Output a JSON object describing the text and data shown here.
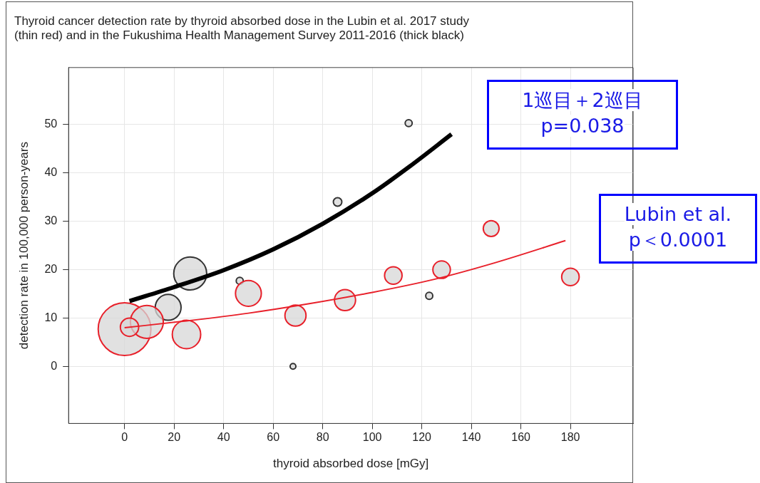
{
  "chart_data": {
    "type": "bubble",
    "title": "Thyroid cancer detection rate by thyroid absorbed dose in the Lubin et al. 2017 study\n(thin red) and in the Fukushima Health Management Survey 2011-2016 (thick black)",
    "xlabel": "thyroid absorbed dose [mGy]",
    "ylabel": "detection rate in 100,000 person-years",
    "annotations": [
      "1巡目＋2巡目\np=0.038",
      "Lubin et al.\np＜0.0001"
    ],
    "series": [
      {
        "color": "#e8202a",
        "x": [
          0,
          9,
          2,
          25,
          50,
          69,
          89,
          108.5,
          128,
          148,
          180
        ],
        "values": [
          7.7,
          9.2,
          8.1,
          6.6,
          15.1,
          10.5,
          13.7,
          18.8,
          20,
          28.5,
          18.5
        ],
        "sizes": [
          1,
          0.39,
          0.12,
          0.29,
          0.24,
          0.16,
          0.16,
          0.11,
          0.11,
          0.09,
          0.11
        ]
      },
      {
        "color": "#333333",
        "x": [
          17.6,
          26.5,
          46.5,
          68,
          86,
          114.7,
          123
        ],
        "values": [
          12.2,
          19.2,
          17.7,
          0,
          34,
          50.3,
          14.6
        ],
        "sizes": [
          0.24,
          0.39,
          0.018,
          0.012,
          0.026,
          0.018,
          0.018
        ]
      },
      {
        "type": "line",
        "color": "#e8202a",
        "x": [
          0,
          25,
          50,
          75,
          100,
          125,
          150,
          178
        ],
        "values": [
          8,
          9.4,
          11,
          13,
          15.3,
          18,
          21.5,
          26
        ]
      },
      {
        "type": "line",
        "color": "#000000",
        "x": [
          2,
          20,
          40,
          60,
          80,
          100,
          115,
          132
        ],
        "values": [
          13.5,
          16.4,
          19.9,
          24.2,
          29.5,
          35.8,
          41.3,
          48
        ]
      }
    ],
    "xlim": [
      -22.6,
      205.3
    ],
    "ylim": [
      -11.8,
      61.8
    ],
    "xticks": [
      0,
      20,
      40,
      60,
      80,
      100,
      120,
      140,
      160,
      180
    ],
    "yticks": [
      0,
      10,
      20,
      30,
      40,
      50
    ],
    "grid": true,
    "legend": false
  }
}
